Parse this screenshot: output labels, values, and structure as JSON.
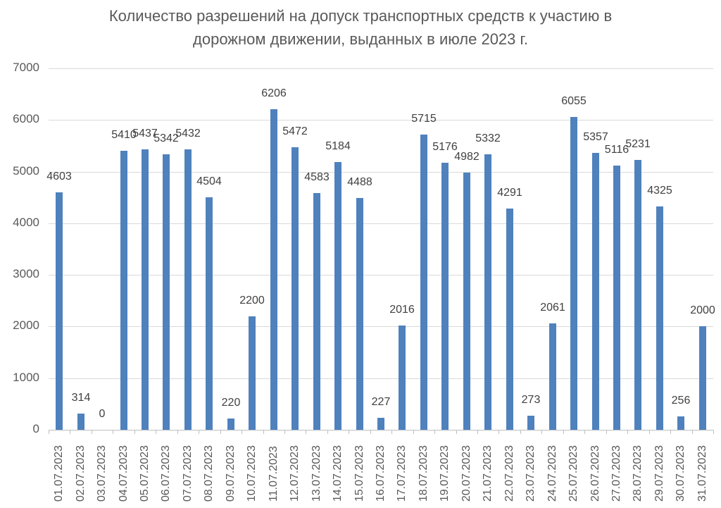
{
  "chart_data": {
    "type": "bar",
    "title": "Количество разрешений на допуск транспортных средств к участию в дорожном движении, выданных в июле 2023 г.",
    "title_lines": [
      "Количество разрешений на допуск транспортных средств к участию в",
      "дорожном движении, выданных в июле 2023 г."
    ],
    "xlabel": "",
    "ylabel": "",
    "ylim": [
      0,
      7000
    ],
    "yticks": [
      0,
      1000,
      2000,
      3000,
      4000,
      5000,
      6000,
      7000
    ],
    "grid": true,
    "legend": null,
    "bar_color": "#4f81bd",
    "data_labels": true,
    "categories": [
      "01.07.2023",
      "02.07.2023",
      "03.07.2023",
      "04.07.2023",
      "05.07.2023",
      "06.07.2023",
      "07.07.2023",
      "08.07.2023",
      "09.07.2023",
      "10.07.2023",
      "11.07.2023",
      "12.07.2023",
      "13.07.2023",
      "14.07.2023",
      "15.07.2023",
      "16.07.2023",
      "17.07.2023",
      "18.07.2023",
      "19.07.2023",
      "20.07.2023",
      "21.07.2023",
      "22.07.2023",
      "23.07.2023",
      "24.07.2023",
      "25.07.2023",
      "26.07.2023",
      "27.07.2023",
      "28.07.2023",
      "29.07.2023",
      "30.07.2023",
      "31.07.2023"
    ],
    "values": [
      4603,
      314,
      0,
      5410,
      5437,
      5342,
      5432,
      4504,
      220,
      2200,
      6206,
      5472,
      4583,
      5184,
      4488,
      227,
      2016,
      5715,
      5176,
      4982,
      5332,
      4291,
      273,
      2061,
      6055,
      5357,
      5116,
      5231,
      4325,
      256,
      2000
    ]
  }
}
